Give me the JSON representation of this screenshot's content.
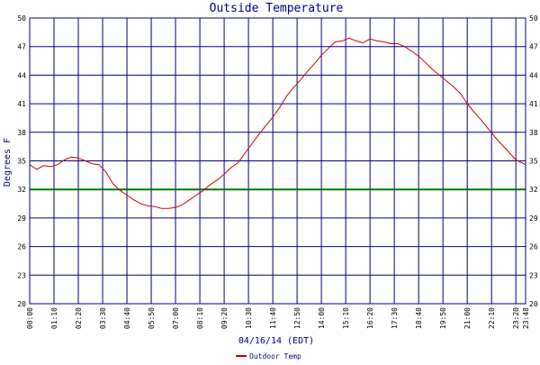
{
  "chart_data": {
    "type": "line",
    "title": "Outside Temperature",
    "xlabel": "04/16/14 (EDT)",
    "ylabel": "Degrees F",
    "ylim": [
      20,
      50
    ],
    "yticks": [
      20,
      23,
      26,
      29,
      32,
      35,
      38,
      41,
      44,
      47,
      50
    ],
    "xticks": [
      "00:00",
      "01:10",
      "02:20",
      "03:30",
      "04:40",
      "05:50",
      "07:00",
      "08:10",
      "09:20",
      "10:30",
      "11:40",
      "12:50",
      "14:00",
      "15:10",
      "16:20",
      "17:30",
      "18:40",
      "19:50",
      "21:00",
      "22:10",
      "23:20",
      "23:48"
    ],
    "grid": true,
    "reference_line": {
      "y": 32,
      "color": "#007a00"
    },
    "legend_position": "bottom-left",
    "series": [
      {
        "name": "Outdoor Temp",
        "color": "#cc0000",
        "x": [
          "00:00",
          "00:20",
          "00:40",
          "01:00",
          "01:20",
          "01:40",
          "02:00",
          "02:20",
          "02:40",
          "03:00",
          "03:20",
          "03:40",
          "04:00",
          "04:20",
          "04:40",
          "05:00",
          "05:20",
          "05:40",
          "06:00",
          "06:20",
          "06:40",
          "07:00",
          "07:20",
          "07:40",
          "08:00",
          "08:20",
          "08:40",
          "09:00",
          "09:20",
          "09:40",
          "10:00",
          "10:20",
          "10:40",
          "11:00",
          "11:20",
          "11:40",
          "12:00",
          "12:20",
          "12:40",
          "13:00",
          "13:20",
          "13:40",
          "14:00",
          "14:20",
          "14:40",
          "15:00",
          "15:20",
          "15:40",
          "16:00",
          "16:20",
          "16:40",
          "17:00",
          "17:20",
          "17:40",
          "18:00",
          "18:20",
          "18:40",
          "19:00",
          "19:20",
          "19:40",
          "20:00",
          "20:20",
          "20:40",
          "21:00",
          "21:20",
          "21:40",
          "22:00",
          "22:20",
          "22:40",
          "23:00",
          "23:20",
          "23:48"
        ],
        "values": [
          34.6,
          34.1,
          34.5,
          34.4,
          34.6,
          35.1,
          35.4,
          35.3,
          35.0,
          34.7,
          34.6,
          33.8,
          32.6,
          31.9,
          31.4,
          30.9,
          30.5,
          30.3,
          30.2,
          30.0,
          30.0,
          30.1,
          30.4,
          30.9,
          31.4,
          31.9,
          32.5,
          33.0,
          33.6,
          34.3,
          34.8,
          35.8,
          36.8,
          37.8,
          38.7,
          39.6,
          40.6,
          41.8,
          42.7,
          43.5,
          44.4,
          45.2,
          46.1,
          46.8,
          47.5,
          47.6,
          47.9,
          47.6,
          47.4,
          47.8,
          47.6,
          47.5,
          47.3,
          47.3,
          47.0,
          46.5,
          46.0,
          45.3,
          44.6,
          44.0,
          43.4,
          42.8,
          42.1,
          41.0,
          40.1,
          39.3,
          38.4,
          37.5,
          36.7,
          35.9,
          35.1,
          34.6
        ]
      }
    ]
  }
}
